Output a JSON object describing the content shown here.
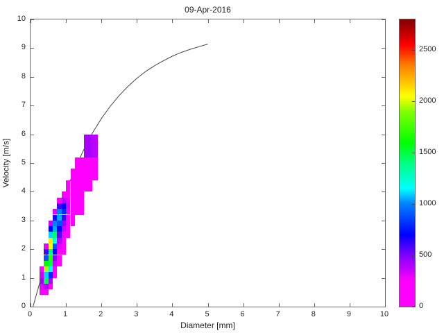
{
  "title": "09-Apr-2016",
  "chart_data": {
    "type": "heatmap",
    "title": "09-Apr-2016",
    "xlabel": "Diameter [mm]",
    "ylabel": "Velocity [m/s]",
    "xlim": [
      0,
      10
    ],
    "ylim": [
      0,
      10
    ],
    "xticks": [
      0,
      1,
      2,
      3,
      4,
      5,
      6,
      7,
      8,
      9,
      10
    ],
    "yticks": [
      0,
      1,
      2,
      3,
      4,
      5,
      6,
      7,
      8,
      9,
      10
    ],
    "grid": false,
    "colorbar": {
      "position": "right",
      "min": 0,
      "max": 2800,
      "ticks": [
        0,
        500,
        1000,
        1500,
        2000,
        2500
      ],
      "stops": [
        {
          "v": 0,
          "c": "#ff00ff"
        },
        {
          "v": 250,
          "c": "#ff00ff"
        },
        {
          "v": 500,
          "c": "#8000ff"
        },
        {
          "v": 700,
          "c": "#0000ff"
        },
        {
          "v": 1000,
          "c": "#0080ff"
        },
        {
          "v": 1150,
          "c": "#00ffff"
        },
        {
          "v": 1400,
          "c": "#00ff80"
        },
        {
          "v": 1600,
          "c": "#00ff00"
        },
        {
          "v": 1900,
          "c": "#80ff00"
        },
        {
          "v": 2050,
          "c": "#ffff00"
        },
        {
          "v": 2350,
          "c": "#ff8000"
        },
        {
          "v": 2550,
          "c": "#ff0000"
        },
        {
          "v": 2800,
          "c": "#800000"
        }
      ]
    },
    "cells_format": [
      "d_min_mm",
      "d_max_mm",
      "v_min_ms",
      "v_max_ms",
      "count"
    ],
    "cells": [
      [
        0.25,
        0.375,
        0.4,
        0.6,
        150
      ],
      [
        0.25,
        0.375,
        0.6,
        0.8,
        300
      ],
      [
        0.25,
        0.375,
        0.8,
        1.0,
        450
      ],
      [
        0.25,
        0.375,
        1.0,
        1.2,
        350
      ],
      [
        0.25,
        0.375,
        1.2,
        1.4,
        200
      ],
      [
        0.375,
        0.5,
        0.4,
        0.6,
        100
      ],
      [
        0.375,
        0.5,
        0.6,
        0.8,
        400
      ],
      [
        0.375,
        0.5,
        0.8,
        1.0,
        1500
      ],
      [
        0.375,
        0.5,
        1.0,
        1.2,
        1100
      ],
      [
        0.375,
        0.5,
        1.2,
        1.4,
        1950
      ],
      [
        0.375,
        0.5,
        1.4,
        1.6,
        1600
      ],
      [
        0.375,
        0.5,
        1.6,
        1.8,
        900
      ],
      [
        0.375,
        0.5,
        1.8,
        2.0,
        600
      ],
      [
        0.375,
        0.5,
        2.0,
        2.2,
        300
      ],
      [
        0.5,
        0.625,
        0.6,
        0.8,
        150
      ],
      [
        0.5,
        0.625,
        0.8,
        1.0,
        400
      ],
      [
        0.5,
        0.625,
        1.0,
        1.2,
        800
      ],
      [
        0.5,
        0.625,
        1.2,
        1.4,
        1200
      ],
      [
        0.5,
        0.625,
        1.4,
        1.6,
        1500
      ],
      [
        0.5,
        0.625,
        1.6,
        1.8,
        1700
      ],
      [
        0.5,
        0.625,
        1.8,
        2.0,
        1400
      ],
      [
        0.5,
        0.625,
        2.0,
        2.2,
        2050
      ],
      [
        0.5,
        0.625,
        2.2,
        2.4,
        2100
      ],
      [
        0.5,
        0.625,
        2.4,
        2.6,
        1100
      ],
      [
        0.5,
        0.625,
        2.6,
        2.8,
        700
      ],
      [
        0.5,
        0.625,
        2.8,
        3.0,
        350
      ],
      [
        0.625,
        0.75,
        1.0,
        1.2,
        150
      ],
      [
        0.625,
        0.75,
        1.2,
        1.4,
        250
      ],
      [
        0.625,
        0.75,
        1.4,
        1.6,
        350
      ],
      [
        0.625,
        0.75,
        1.6,
        1.8,
        500
      ],
      [
        0.625,
        0.75,
        1.8,
        2.0,
        700
      ],
      [
        0.625,
        0.75,
        2.0,
        2.2,
        900
      ],
      [
        0.625,
        0.75,
        2.2,
        2.4,
        1200
      ],
      [
        0.625,
        0.75,
        2.4,
        2.6,
        1450
      ],
      [
        0.625,
        0.75,
        2.6,
        2.8,
        1050
      ],
      [
        0.625,
        0.75,
        2.8,
        3.0,
        1000
      ],
      [
        0.625,
        0.75,
        3.0,
        3.2,
        650
      ],
      [
        0.625,
        0.75,
        3.2,
        3.4,
        300
      ],
      [
        0.75,
        0.875,
        1.4,
        1.6,
        100
      ],
      [
        0.75,
        0.875,
        1.6,
        1.8,
        150
      ],
      [
        0.75,
        0.875,
        1.8,
        2.0,
        200
      ],
      [
        0.75,
        0.875,
        2.0,
        2.2,
        300
      ],
      [
        0.75,
        0.875,
        2.2,
        2.4,
        400
      ],
      [
        0.75,
        0.875,
        2.4,
        2.6,
        550
      ],
      [
        0.75,
        0.875,
        2.6,
        2.8,
        700
      ],
      [
        0.75,
        0.875,
        2.8,
        3.0,
        900
      ],
      [
        0.75,
        0.875,
        3.0,
        3.2,
        1050
      ],
      [
        0.75,
        0.875,
        3.2,
        3.4,
        1000
      ],
      [
        0.75,
        0.875,
        3.4,
        3.6,
        600
      ],
      [
        0.75,
        0.875,
        3.6,
        3.8,
        250
      ],
      [
        0.875,
        1.0,
        1.8,
        2.0,
        100
      ],
      [
        0.875,
        1.0,
        2.0,
        2.2,
        150
      ],
      [
        0.875,
        1.0,
        2.2,
        2.4,
        200
      ],
      [
        0.875,
        1.0,
        2.4,
        2.6,
        250
      ],
      [
        0.875,
        1.0,
        2.6,
        2.8,
        350
      ],
      [
        0.875,
        1.0,
        2.8,
        3.0,
        450
      ],
      [
        0.875,
        1.0,
        3.0,
        3.2,
        600
      ],
      [
        0.875,
        1.0,
        3.2,
        3.4,
        800
      ],
      [
        0.875,
        1.0,
        3.4,
        3.6,
        700
      ],
      [
        0.875,
        1.0,
        3.6,
        3.8,
        400
      ],
      [
        0.875,
        1.0,
        3.8,
        4.0,
        200
      ],
      [
        1.0,
        1.125,
        2.4,
        2.6,
        100
      ],
      [
        1.0,
        1.125,
        2.6,
        2.8,
        130
      ],
      [
        1.0,
        1.125,
        2.8,
        3.0,
        170
      ],
      [
        1.0,
        1.125,
        3.0,
        3.2,
        220
      ],
      [
        1.0,
        1.125,
        3.2,
        3.4,
        280
      ],
      [
        1.0,
        1.125,
        3.4,
        3.6,
        330
      ],
      [
        1.0,
        1.125,
        3.6,
        3.8,
        300
      ],
      [
        1.0,
        1.125,
        3.8,
        4.0,
        240
      ],
      [
        1.0,
        1.125,
        4.0,
        4.4,
        180
      ],
      [
        1.125,
        1.25,
        2.8,
        3.2,
        110
      ],
      [
        1.125,
        1.25,
        3.2,
        3.6,
        180
      ],
      [
        1.125,
        1.25,
        3.6,
        4.0,
        230
      ],
      [
        1.125,
        1.25,
        4.0,
        4.4,
        200
      ],
      [
        1.125,
        1.25,
        4.4,
        4.8,
        140
      ],
      [
        1.25,
        1.5,
        3.2,
        3.6,
        100
      ],
      [
        1.25,
        1.5,
        3.6,
        4.0,
        150
      ],
      [
        1.25,
        1.5,
        4.0,
        4.4,
        190
      ],
      [
        1.25,
        1.5,
        4.4,
        4.8,
        170
      ],
      [
        1.25,
        1.5,
        4.8,
        5.2,
        120
      ],
      [
        1.5,
        1.75,
        4.0,
        4.4,
        90
      ],
      [
        1.5,
        1.75,
        4.4,
        4.8,
        130
      ],
      [
        1.5,
        1.75,
        4.8,
        5.2,
        140
      ],
      [
        1.5,
        1.75,
        5.2,
        6.0,
        420
      ],
      [
        1.75,
        1.9,
        4.4,
        5.2,
        100
      ],
      [
        1.75,
        1.9,
        5.2,
        6.0,
        380
      ]
    ],
    "curve": {
      "name": "terminal-velocity-curve",
      "color": "#444444",
      "points": [
        [
          0.07,
          0
        ],
        [
          0.25,
          0.79
        ],
        [
          0.5,
          2.02
        ],
        [
          0.75,
          3.08
        ],
        [
          1.0,
          4.0
        ],
        [
          1.25,
          4.79
        ],
        [
          1.5,
          5.46
        ],
        [
          1.75,
          6.05
        ],
        [
          2.0,
          6.55
        ],
        [
          2.25,
          6.98
        ],
        [
          2.5,
          7.35
        ],
        [
          2.75,
          7.67
        ],
        [
          3.0,
          7.95
        ],
        [
          3.25,
          8.19
        ],
        [
          3.5,
          8.39
        ],
        [
          3.75,
          8.56
        ],
        [
          4.0,
          8.72
        ],
        [
          4.25,
          8.85
        ],
        [
          4.5,
          8.96
        ],
        [
          4.75,
          9.05
        ],
        [
          5.0,
          9.14
        ]
      ]
    }
  }
}
